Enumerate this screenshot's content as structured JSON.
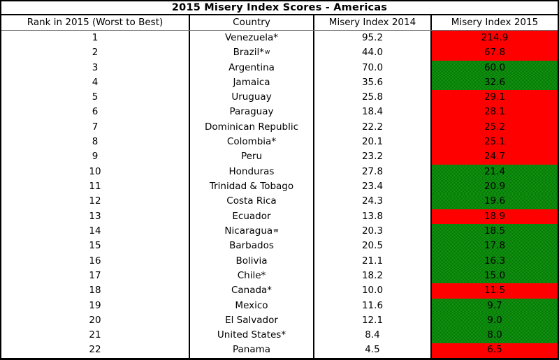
{
  "chart_data": {
    "type": "table",
    "title": "2015 Misery Index Scores - Americas",
    "columns": [
      "Rank in 2015 (Worst to Best)",
      "Country",
      "Misery Index 2014",
      "Misery Index 2015"
    ],
    "rows": [
      {
        "rank": "1",
        "country": "Venezuela*",
        "sup": "",
        "misery_2014": "95.2",
        "misery_2015": "214.9",
        "change": "increase"
      },
      {
        "rank": "2",
        "country": "Brazil*",
        "sup": "w",
        "misery_2014": "44.0",
        "misery_2015": "67.8",
        "change": "increase"
      },
      {
        "rank": "3",
        "country": "Argentina",
        "sup": "",
        "misery_2014": "70.0",
        "misery_2015": "60.0",
        "change": "decrease"
      },
      {
        "rank": "4",
        "country": "Jamaica",
        "sup": "",
        "misery_2014": "35.6",
        "misery_2015": "32.6",
        "change": "decrease"
      },
      {
        "rank": "5",
        "country": "Uruguay",
        "sup": "",
        "misery_2014": "25.8",
        "misery_2015": "29.1",
        "change": "increase"
      },
      {
        "rank": "6",
        "country": "Paraguay",
        "sup": "",
        "misery_2014": "18.4",
        "misery_2015": "28.1",
        "change": "increase"
      },
      {
        "rank": "7",
        "country": "Dominican Republic",
        "sup": "",
        "misery_2014": "22.2",
        "misery_2015": "25.2",
        "change": "increase"
      },
      {
        "rank": "8",
        "country": "Colombia*",
        "sup": "",
        "misery_2014": "20.1",
        "misery_2015": "25.1",
        "change": "increase"
      },
      {
        "rank": "9",
        "country": "Peru",
        "sup": "",
        "misery_2014": "23.2",
        "misery_2015": "24.7",
        "change": "increase"
      },
      {
        "rank": "10",
        "country": "Honduras",
        "sup": "",
        "misery_2014": "27.8",
        "misery_2015": "21.4",
        "change": "decrease"
      },
      {
        "rank": "11",
        "country": "Trinidad & Tobago",
        "sup": "",
        "misery_2014": "23.4",
        "misery_2015": "20.9",
        "change": "decrease"
      },
      {
        "rank": "12",
        "country": "Costa Rica",
        "sup": "",
        "misery_2014": "24.3",
        "misery_2015": "19.6",
        "change": "decrease"
      },
      {
        "rank": "13",
        "country": "Ecuador",
        "sup": "",
        "misery_2014": "13.8",
        "misery_2015": "18.9",
        "change": "increase"
      },
      {
        "rank": "14",
        "country": "Nicaragua",
        "sup": "w",
        "misery_2014": "20.3",
        "misery_2015": "18.5",
        "change": "decrease"
      },
      {
        "rank": "15",
        "country": "Barbados",
        "sup": "",
        "misery_2014": "20.5",
        "misery_2015": "17.8",
        "change": "decrease"
      },
      {
        "rank": "16",
        "country": "Bolivia",
        "sup": "",
        "misery_2014": "21.1",
        "misery_2015": "16.3",
        "change": "decrease"
      },
      {
        "rank": "17",
        "country": "Chile*",
        "sup": "",
        "misery_2014": "18.2",
        "misery_2015": "15.0",
        "change": "decrease"
      },
      {
        "rank": "18",
        "country": "Canada*",
        "sup": "",
        "misery_2014": "10.0",
        "misery_2015": "11.5",
        "change": "increase"
      },
      {
        "rank": "19",
        "country": "Mexico",
        "sup": "",
        "misery_2014": "11.6",
        "misery_2015": "9.7",
        "change": "decrease"
      },
      {
        "rank": "20",
        "country": "El Salvador",
        "sup": "",
        "misery_2014": "12.1",
        "misery_2015": "9.0",
        "change": "decrease"
      },
      {
        "rank": "21",
        "country": "United States*",
        "sup": "",
        "misery_2014": "8.4",
        "misery_2015": "8.0",
        "change": "decrease"
      },
      {
        "rank": "22",
        "country": "Panama",
        "sup": "",
        "misery_2014": "4.5",
        "misery_2015": "6.5",
        "change": "increase"
      }
    ],
    "status_colors": {
      "increase": "#ff0000",
      "decrease_dither_light": "#149a14",
      "decrease_dither_dark": "#047204",
      "border": "#000000"
    }
  }
}
